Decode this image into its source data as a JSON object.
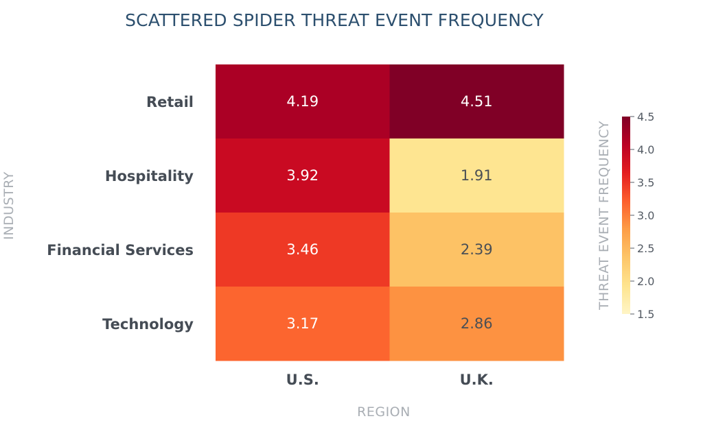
{
  "chart_data": {
    "type": "heatmap",
    "title": "SCATTERED SPIDER THREAT EVENT FREQUENCY",
    "xlabel": "REGION",
    "ylabel": "INDUSTRY",
    "x_categories": [
      "U.S.",
      "U.K."
    ],
    "y_categories": [
      "Retail",
      "Hospitality",
      "Financial Services",
      "Technology"
    ],
    "values": [
      [
        4.19,
        4.51
      ],
      [
        3.92,
        1.91
      ],
      [
        3.46,
        2.39
      ],
      [
        3.17,
        2.86
      ]
    ],
    "value_labels": [
      [
        "4.19",
        "4.51"
      ],
      [
        "3.92",
        "1.91"
      ],
      [
        "3.46",
        "2.39"
      ],
      [
        "3.17",
        "2.86"
      ]
    ],
    "colorbar": {
      "title": "THREAT EVENT FREQUENCY",
      "range": [
        1.5,
        4.5
      ],
      "ticks": [
        1.5,
        2.0,
        2.5,
        3.0,
        3.5,
        4.0,
        4.5
      ],
      "tick_labels": [
        "1.5",
        "2.0",
        "2.5",
        "3.0",
        "3.5",
        "4.0",
        "4.5"
      ],
      "colorscale": [
        "#fff5c6",
        "#fee48f",
        "#fdc568",
        "#fd9d46",
        "#fc5e2c",
        "#e41d1f",
        "#bb0024",
        "#800026"
      ]
    },
    "grid": false
  }
}
